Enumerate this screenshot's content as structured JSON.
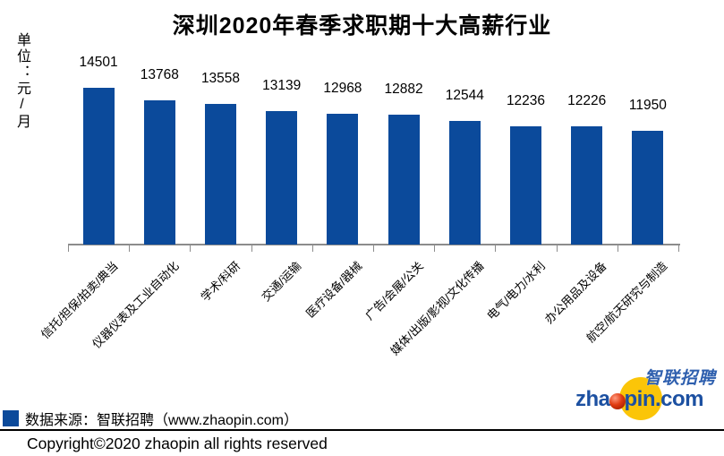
{
  "title": "深圳2020年春季求职期十大高薪行业",
  "y_axis_unit": "单位：元/月",
  "chart_data": {
    "type": "bar",
    "title": "深圳2020年春季求职期十大高薪行业",
    "ylabel": "单位：元/月",
    "categories": [
      "信托/担保/拍卖/典当",
      "仪器仪表及工业自动化",
      "学术/科研",
      "交通/运输",
      "医疗设备/器械",
      "广告/会展/公关",
      "媒体/出版/影视/文化传播",
      "电气/电力/水利",
      "办公用品及设备",
      "航空/航天研究与制造"
    ],
    "values": [
      14501,
      13768,
      13558,
      13139,
      12968,
      12882,
      12544,
      12236,
      12226,
      11950
    ],
    "bar_color": "#0b4a9b",
    "value_labels": "outside-end",
    "grid": false,
    "x_axis_line": true,
    "y_axis_line": false,
    "implied_baseline_value": 5208,
    "legend_position": "bottom-left"
  },
  "legend": {
    "source_label": "数据来源：智联招聘（www.zhaopin.com）",
    "swatch_color": "#0b4a9b"
  },
  "footer": {
    "copyright": "Copyright©2020 zhaopin all rights reserved"
  },
  "logo": {
    "cn_text": "智联招聘",
    "latin_prefix": "zha",
    "latin_suffix": "pin.com",
    "ball_icon": "red-sphere-icon",
    "circle_color": "#fbc508",
    "text_color": "#1c50a1"
  }
}
